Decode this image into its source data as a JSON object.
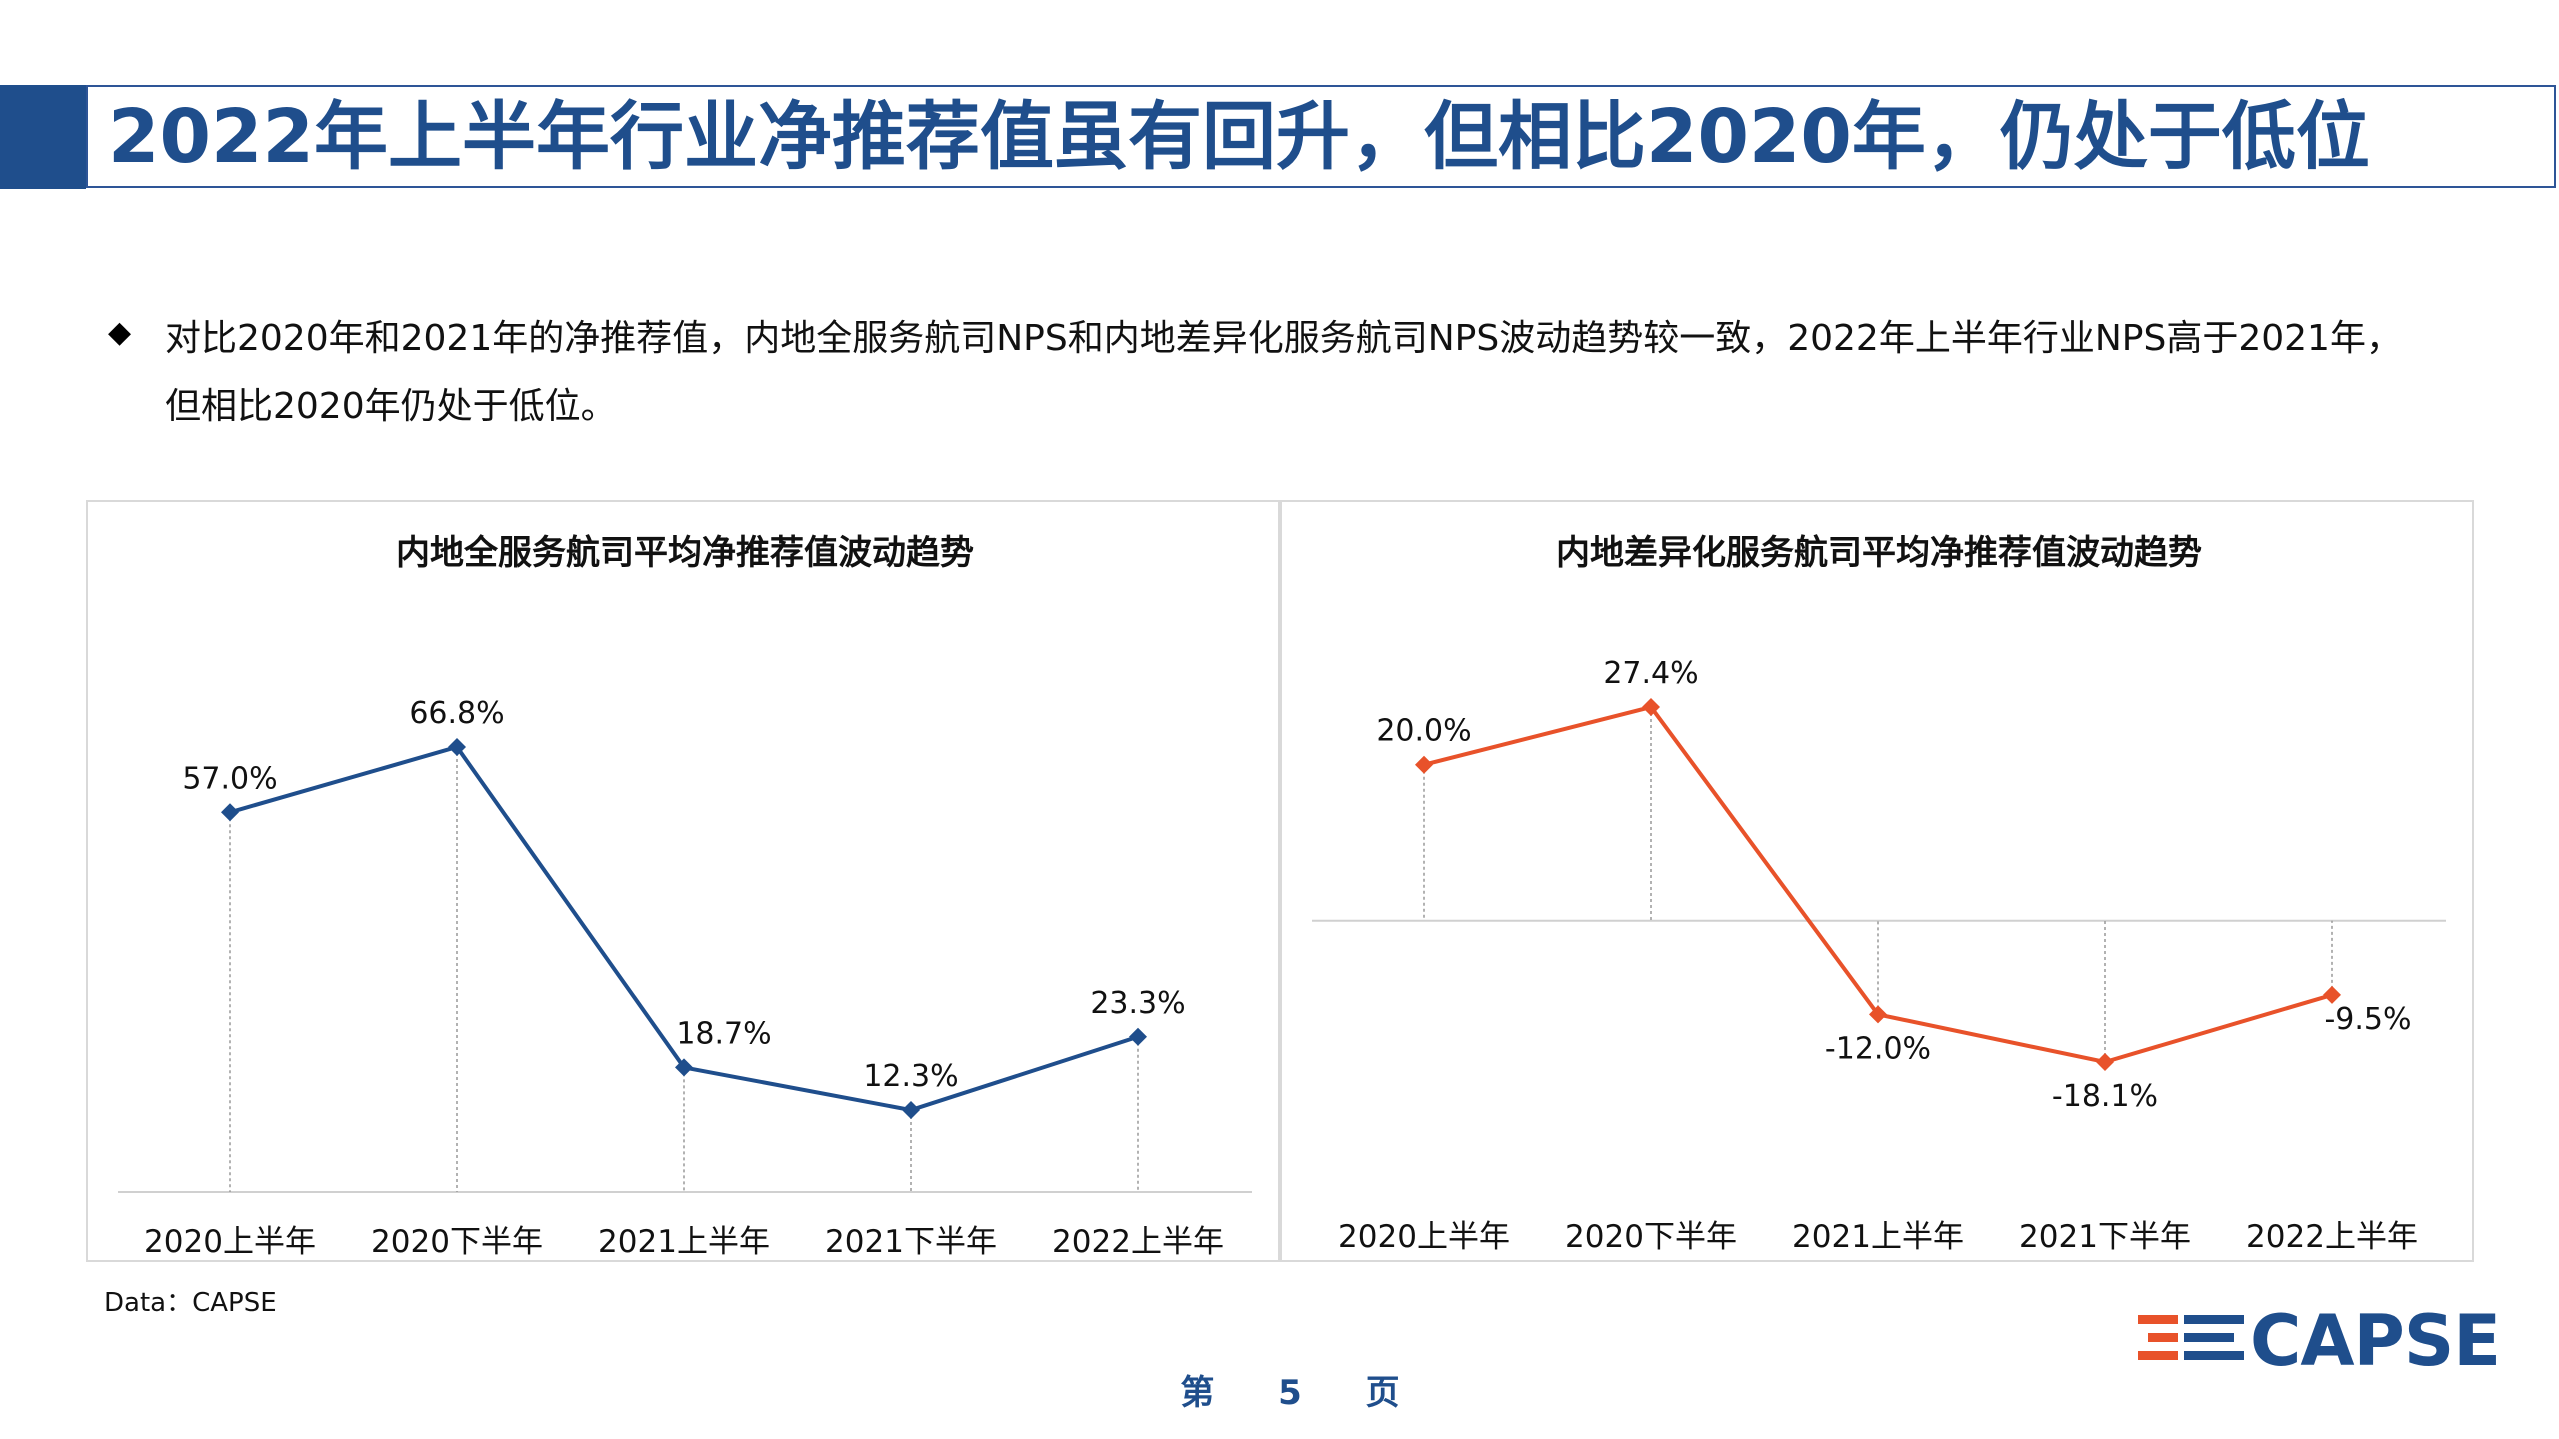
{
  "header": {
    "title": "2022年上半年行业净推荐值虽有回升，但相比2020年，仍处于低位"
  },
  "bullet": {
    "symbol": "◆",
    "line1": "对比2020年和2021年的净推荐值，内地全服务航司NPS和内地差异化服务航司NPS波动趋势较一致，2022年上半年行业NPS高于2021年，",
    "line2": "但相比2020年仍处于低位。"
  },
  "chart_data": [
    {
      "type": "line",
      "title": "内地全服务航司平均净推荐值波动趋势",
      "categories": [
        "2020上半年",
        "2020下半年",
        "2021上半年",
        "2021下半年",
        "2022上半年"
      ],
      "series": [
        {
          "values": [
            57.0,
            66.8,
            18.7,
            12.3,
            23.3
          ]
        }
      ],
      "data_labels": [
        "57.0%",
        "66.8%",
        "18.7%",
        "12.3%",
        "23.3%"
      ],
      "color": "#1f4e8c",
      "grid": false,
      "drop_lines": true
    },
    {
      "type": "line",
      "title": "内地差异化服务航司平均净推荐值波动趋势",
      "categories": [
        "2020上半年",
        "2020下半年",
        "2021上半年",
        "2021下半年",
        "2022上半年"
      ],
      "series": [
        {
          "values": [
            20.0,
            27.4,
            -12.0,
            -18.1,
            -9.5
          ]
        }
      ],
      "data_labels": [
        "20.0%",
        "27.4%",
        "-12.0%",
        "-18.1%",
        "-9.5%"
      ],
      "color": "#e8522a",
      "grid": false,
      "drop_lines": true
    }
  ],
  "footer": {
    "source": "Data：CAPSE",
    "page_prefix": "第",
    "page_number": "5",
    "page_suffix": "页",
    "logo_text": "CAPSE"
  }
}
